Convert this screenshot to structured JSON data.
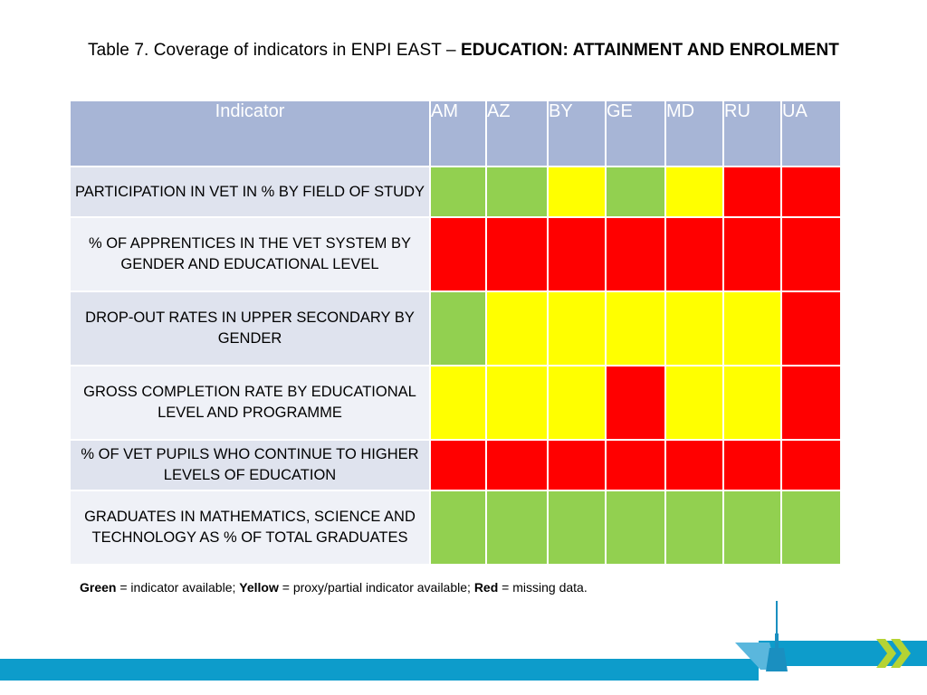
{
  "title": {
    "prefix": "Table 7. Coverage of indicators in ENPI EAST – ",
    "bold": "EDUCATION: ATTAINMENT AND ENROLMENT"
  },
  "table": {
    "header_indicator": "Indicator",
    "countries": [
      "AM",
      "AZ",
      "BY",
      "GE",
      "MD",
      "RU",
      "UA"
    ],
    "rows": [
      {
        "indicator": "PARTICIPATION IN VET IN % BY FIELD OF STUDY",
        "status": [
          "green",
          "green",
          "yellow",
          "green",
          "yellow",
          "red",
          "red"
        ]
      },
      {
        "indicator": "% OF APPRENTICES IN THE VET SYSTEM BY GENDER AND EDUCATIONAL LEVEL",
        "status": [
          "red",
          "red",
          "red",
          "red",
          "red",
          "red",
          "red"
        ]
      },
      {
        "indicator": "DROP-OUT RATES IN UPPER SECONDARY BY GENDER",
        "status": [
          "green",
          "yellow",
          "yellow",
          "yellow",
          "yellow",
          "yellow",
          "red"
        ]
      },
      {
        "indicator": "GROSS COMPLETION RATE BY EDUCATIONAL LEVEL AND PROGRAMME",
        "status": [
          "yellow",
          "yellow",
          "yellow",
          "red",
          "yellow",
          "yellow",
          "red"
        ]
      },
      {
        "indicator": "% OF VET PUPILS WHO CONTINUE TO HIGHER LEVELS OF EDUCATION",
        "status": [
          "red",
          "red",
          "red",
          "red",
          "red",
          "red",
          "red"
        ]
      },
      {
        "indicator": "GRADUATES IN MATHEMATICS, SCIENCE AND TECHNOLOGY AS % OF TOTAL GRADUATES",
        "status": [
          "green",
          "green",
          "green",
          "green",
          "green",
          "green",
          "green"
        ]
      }
    ]
  },
  "colors": {
    "green": "#92d050",
    "yellow": "#ffff00",
    "red": "#ff0000",
    "header_bg": "#a7b5d6",
    "footer_blue": "#0d9ccb",
    "logo_green": "#b5d334"
  },
  "legend": {
    "green_label": "Green",
    "green_text": " = indicator available; ",
    "yellow_label": "Yellow",
    "yellow_text": " = proxy/partial indicator available; ",
    "red_label": "Red",
    "red_text": " = missing data."
  },
  "icons": [
    "tower-logo-icon",
    "double-chevron-icon"
  ]
}
